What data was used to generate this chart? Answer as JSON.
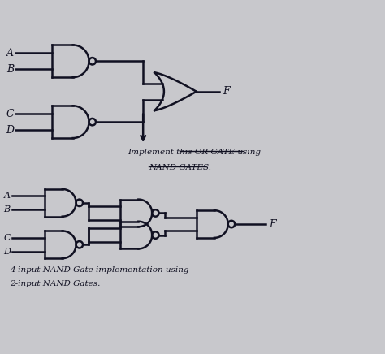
{
  "bg_color": "#c8c8cc",
  "line_color": "#111122",
  "figsize": [
    4.74,
    4.36
  ],
  "dpi": 100,
  "text1": "Implement this OR GATE using",
  "text1b": "NAND GATES.",
  "text2": "4-input NAND Gate implementation using",
  "text2b": "2-input NAND Gates.",
  "underline1_or": [
    0.52,
    0.73
  ],
  "underline1_nand": [
    0.3,
    0.55
  ]
}
